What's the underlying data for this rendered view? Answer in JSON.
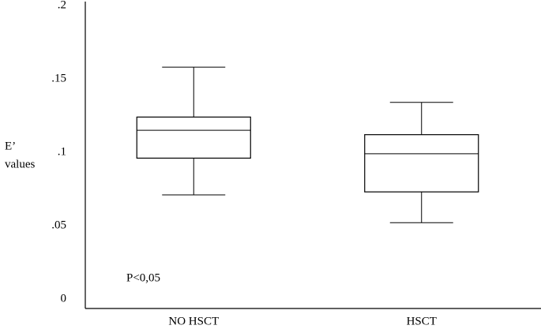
{
  "chart_data": {
    "type": "box",
    "y_label": [
      "E’",
      "values"
    ],
    "annotation": "P<0,05",
    "categories": [
      "NO HSCT",
      "HSCT"
    ],
    "min": [
      0.071,
      0.052
    ],
    "q1": [
      0.096,
      0.073
    ],
    "median": [
      0.115,
      0.099
    ],
    "q3": [
      0.124,
      0.112
    ],
    "max": [
      0.158,
      0.134
    ],
    "color": "#000000",
    "ylim": [
      0,
      0.2
    ],
    "yticks": [
      {
        "value": 0,
        "label": "0"
      },
      {
        "value": 0.05,
        "label": ".05"
      },
      {
        "value": 0.1,
        "label": ".1"
      },
      {
        "value": 0.15,
        "label": ".15"
      },
      {
        "value": 0.2,
        "label": ".2"
      }
    ]
  }
}
